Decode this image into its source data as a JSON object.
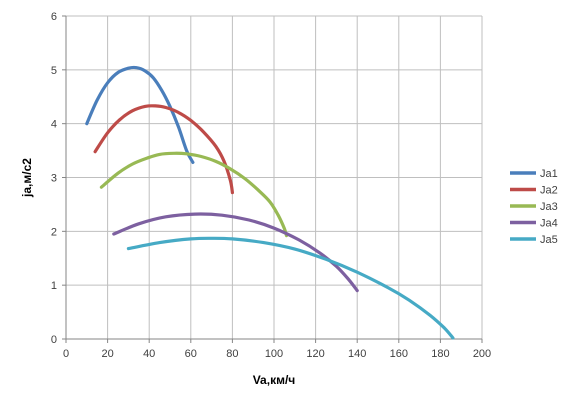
{
  "chart_data": {
    "type": "line",
    "title": "",
    "xlabel": "Va,км/ч",
    "ylabel": "ja,м/с2",
    "xlim": [
      0,
      200
    ],
    "ylim": [
      0,
      6
    ],
    "xticks": [
      "0",
      "20",
      "40",
      "60",
      "80",
      "100",
      "120",
      "140",
      "160",
      "180",
      "200"
    ],
    "yticks": [
      "0",
      "1",
      "2",
      "3",
      "4",
      "5",
      "6"
    ],
    "grid": true,
    "legend_position": "right",
    "series": [
      {
        "name": "Ja1",
        "color": "#4a7ebb",
        "x": [
          10,
          15,
          20,
          25,
          30,
          34,
          38,
          42,
          46,
          50,
          54,
          58,
          61
        ],
        "y": [
          4.0,
          4.44,
          4.76,
          4.95,
          5.03,
          5.04,
          4.98,
          4.85,
          4.62,
          4.32,
          3.95,
          3.5,
          3.28
        ]
      },
      {
        "name": "Ja2",
        "color": "#be4b48",
        "x": [
          14,
          20,
          26,
          32,
          38,
          43,
          48,
          54,
          60,
          66,
          72,
          76,
          79,
          80
        ],
        "y": [
          3.48,
          3.83,
          4.08,
          4.24,
          4.32,
          4.33,
          4.3,
          4.21,
          4.06,
          3.85,
          3.58,
          3.3,
          2.95,
          2.72
        ]
      },
      {
        "name": "Ja3",
        "color": "#98b954",
        "x": [
          17,
          25,
          32,
          39,
          45,
          52,
          58,
          65,
          72,
          79,
          86,
          92,
          98,
          102,
          105,
          106
        ],
        "y": [
          2.82,
          3.08,
          3.25,
          3.36,
          3.43,
          3.45,
          3.44,
          3.39,
          3.3,
          3.16,
          2.98,
          2.78,
          2.55,
          2.3,
          2.05,
          1.92
        ]
      },
      {
        "name": "Ja4",
        "color": "#7d60a0",
        "x": [
          23,
          35,
          48,
          62,
          75,
          88,
          100,
          112,
          122,
          130,
          136,
          140
        ],
        "y": [
          1.95,
          2.14,
          2.27,
          2.32,
          2.3,
          2.21,
          2.06,
          1.84,
          1.6,
          1.35,
          1.1,
          0.9
        ]
      },
      {
        "name": "Ja5",
        "color": "#46aac5",
        "x": [
          30,
          45,
          60,
          70,
          80,
          95,
          110,
          125,
          140,
          155,
          165,
          175,
          182,
          186
        ],
        "y": [
          1.68,
          1.79,
          1.86,
          1.87,
          1.86,
          1.79,
          1.67,
          1.48,
          1.24,
          0.95,
          0.72,
          0.44,
          0.2,
          0.02
        ]
      }
    ]
  }
}
